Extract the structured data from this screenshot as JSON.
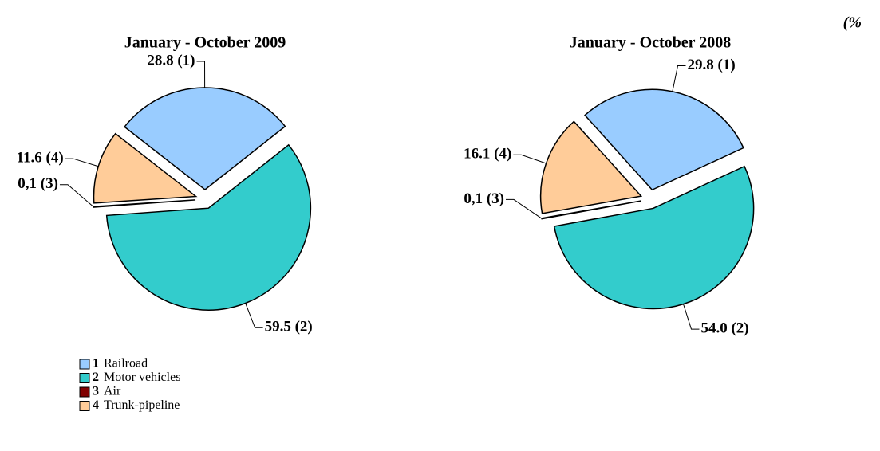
{
  "unit": "(%",
  "legend_keys": [
    "1",
    "2",
    "3",
    "4"
  ],
  "chart_data": [
    {
      "type": "pie",
      "title": "January - October 2009",
      "categories": [
        "Railroad",
        "Motor vehicles",
        "Air",
        "Trunk-pipeline"
      ],
      "values": [
        28.8,
        59.5,
        0.1,
        11.6
      ],
      "value_labels": [
        "28.8 (1)",
        "59.5 (2)",
        "0,1 (3)",
        "11.6 (4)"
      ],
      "colors": [
        "#99ccff",
        "#33cccc",
        "#800000",
        "#ffcc99"
      ]
    },
    {
      "type": "pie",
      "title": "January - October 2008",
      "categories": [
        "Railroad",
        "Motor vehicles",
        "Air",
        "Trunk-pipeline"
      ],
      "values": [
        29.8,
        54.0,
        0.1,
        16.1
      ],
      "value_labels": [
        "29.8 (1)",
        "54.0 (2)",
        "0,1 (3)",
        "16.1 (4)"
      ],
      "colors": [
        "#99ccff",
        "#33cccc",
        "#800000",
        "#ffcc99"
      ]
    }
  ]
}
